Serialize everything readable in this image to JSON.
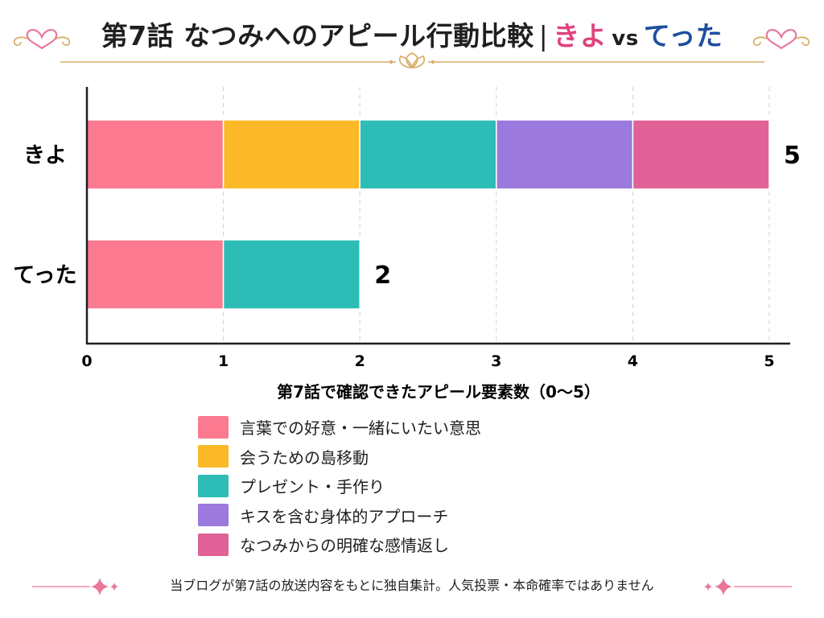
{
  "title": {
    "main": "第7話 なつみへのアピール行動比較",
    "separator": "|",
    "name_a": "きよ",
    "vs": "vs",
    "name_b": "てった",
    "color_a": "#e0437e",
    "color_b": "#1d4ea0"
  },
  "chart_data": {
    "type": "bar",
    "orientation": "horizontal",
    "stacked": true,
    "categories": [
      "きよ",
      "てった"
    ],
    "series": [
      {
        "name": "言葉での好意・一緒にいたい意思",
        "color": "#fb7a90",
        "values": [
          1,
          1
        ]
      },
      {
        "name": "会うための島移動",
        "color": "#fbb928",
        "values": [
          1,
          0
        ]
      },
      {
        "name": "プレゼント・手作り",
        "color": "#2dbdb6",
        "values": [
          1,
          1
        ]
      },
      {
        "name": "キスを含む身体的アプローチ",
        "color": "#9b79dd",
        "values": [
          1,
          0
        ]
      },
      {
        "name": "なつみからの明確な感情返し",
        "color": "#e06296",
        "values": [
          1,
          0
        ]
      }
    ],
    "totals": [
      5,
      2
    ],
    "xlim": [
      0,
      5
    ],
    "xticks": [
      0,
      1,
      2,
      3,
      4,
      5
    ],
    "xlabel": "第7話で確認できたアピール要素数（0〜5）",
    "ylabel": "",
    "grid": "vertical dashed",
    "legend_position": "bottom"
  },
  "footnote": "当ブログが第7話の放送内容をもとに独自集計。人気投票・本命確率ではありません",
  "colors": {
    "accent_pink": "#e8789a",
    "ornament_gold": "#d9b06a",
    "axis": "#1f1f1f",
    "grid": "#d0d0d0"
  }
}
